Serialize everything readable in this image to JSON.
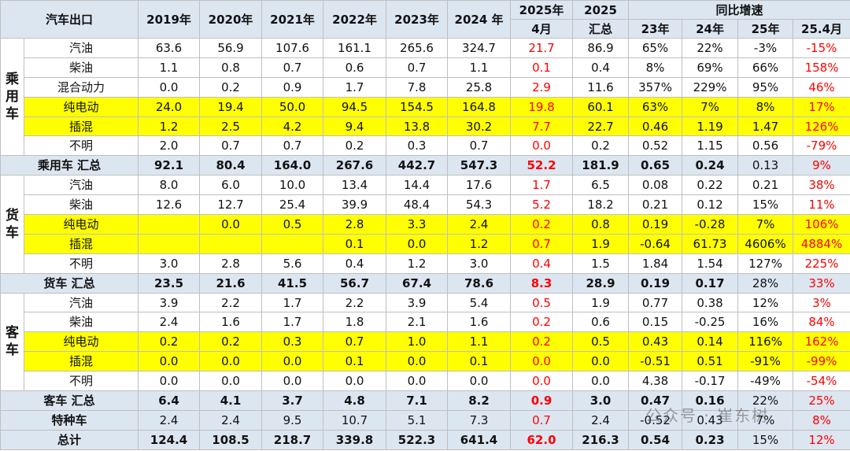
{
  "header": {
    "corner": "汽车出口",
    "years": [
      "2019年",
      "2020年",
      "2021年",
      "2022年",
      "2023年",
      "2024 年"
    ],
    "month_col": [
      "2025年",
      "4月"
    ],
    "total_col": [
      "2025",
      "汇总"
    ],
    "growth": "同比增速",
    "growth_cols": [
      "23年",
      "24年",
      "25年",
      "25.4月"
    ]
  },
  "sections": [
    {
      "label": "乘用车",
      "rows": [
        {
          "name": "汽油",
          "cells": [
            "63.6",
            "56.9",
            "107.6",
            "161.1",
            "265.6",
            "324.7",
            "21.7",
            "86.9",
            "65%",
            "22%",
            "-3%",
            "-15%"
          ]
        },
        {
          "name": "柴油",
          "cells": [
            "1.1",
            "0.8",
            "0.7",
            "0.6",
            "0.7",
            "1.1",
            "0.1",
            "0.4",
            "8%",
            "69%",
            "66%",
            "158%"
          ]
        },
        {
          "name": "混合动力",
          "cells": [
            "0.0",
            "0.2",
            "0.9",
            "1.7",
            "7.8",
            "25.8",
            "2.9",
            "11.6",
            "357%",
            "229%",
            "95%",
            "46%"
          ]
        },
        {
          "name": "纯电动",
          "cells": [
            "24.0",
            "19.4",
            "50.0",
            "94.5",
            "154.5",
            "164.8",
            "19.8",
            "60.1",
            "63%",
            "7%",
            "8%",
            "17%"
          ]
        },
        {
          "name": "插混",
          "cells": [
            "1.2",
            "2.5",
            "4.2",
            "9.4",
            "13.8",
            "30.2",
            "7.7",
            "22.7",
            "0.46",
            "1.19",
            "1.47",
            "126%"
          ]
        },
        {
          "name": "不明",
          "cells": [
            "2.0",
            "0.7",
            "0.7",
            "0.2",
            "0.3",
            "0.7",
            "0.0",
            "0.2",
            "0.52",
            "1.15",
            "0.56",
            "-79%"
          ]
        }
      ],
      "total": {
        "name": "乘用车 汇总",
        "cells": [
          "92.1",
          "80.4",
          "164.0",
          "267.6",
          "442.7",
          "547.3",
          "52.2",
          "181.9",
          "0.65",
          "0.24",
          "0.13",
          "9%"
        ]
      }
    },
    {
      "label": "货车",
      "rows": [
        {
          "name": "汽油",
          "cells": [
            "8.0",
            "6.0",
            "10.0",
            "13.4",
            "14.4",
            "17.6",
            "1.7",
            "6.5",
            "0.08",
            "0.22",
            "0.21",
            "38%"
          ]
        },
        {
          "name": "柴油",
          "cells": [
            "12.6",
            "12.7",
            "25.4",
            "39.9",
            "48.4",
            "54.3",
            "5.2",
            "18.2",
            "0.21",
            "0.12",
            "15%",
            "11%"
          ]
        },
        {
          "name": "纯电动",
          "cells": [
            null,
            "0.0",
            "0.5",
            "2.8",
            "3.3",
            "2.4",
            "0.2",
            "0.8",
            "0.19",
            "-0.28",
            "7%",
            "106%"
          ]
        },
        {
          "name": "插混",
          "cells": [
            null,
            null,
            null,
            "0.1",
            "0.0",
            "1.2",
            "0.7",
            "1.9",
            "-0.64",
            "61.73",
            "4606%",
            "4884%"
          ]
        },
        {
          "name": "不明",
          "cells": [
            "3.0",
            "2.8",
            "5.6",
            "0.4",
            "1.2",
            "3.0",
            "0.4",
            "1.5",
            "1.84",
            "1.54",
            "127%",
            "225%"
          ]
        }
      ],
      "total": {
        "name": "货车 汇总",
        "cells": [
          "23.5",
          "21.6",
          "41.5",
          "56.7",
          "67.4",
          "78.6",
          "8.3",
          "28.9",
          "0.19",
          "0.17",
          "28%",
          "33%"
        ]
      }
    },
    {
      "label": "客车",
      "rows": [
        {
          "name": "汽油",
          "cells": [
            "3.9",
            "2.2",
            "1.7",
            "2.2",
            "3.9",
            "5.4",
            "0.5",
            "1.9",
            "0.77",
            "0.38",
            "12%",
            "3%"
          ]
        },
        {
          "name": "柴油",
          "cells": [
            "2.4",
            "1.6",
            "1.7",
            "1.8",
            "2.1",
            "1.6",
            "0.2",
            "0.6",
            "0.15",
            "-0.25",
            "16%",
            "84%"
          ]
        },
        {
          "name": "纯电动",
          "cells": [
            "0.2",
            "0.2",
            "0.3",
            "0.7",
            "1.0",
            "1.1",
            "0.2",
            "0.5",
            "0.43",
            "0.14",
            "116%",
            "162%"
          ]
        },
        {
          "name": "插混",
          "cells": [
            "0.0",
            "0.0",
            "0.0",
            "0.1",
            "0.0",
            "0.1",
            "0.0",
            "0.0",
            "-0.51",
            "0.51",
            "-91%",
            "-99%"
          ]
        },
        {
          "name": "不明",
          "cells": [
            "0.0",
            "0.0",
            "0.0",
            "0.0",
            "0.0",
            "0.0",
            "0.0",
            "0.0",
            "4.38",
            "-0.17",
            "-49%",
            "-54%"
          ]
        }
      ],
      "total": {
        "name": "客车 汇总",
        "cells": [
          "6.4",
          "4.1",
          "3.7",
          "4.8",
          "7.1",
          "8.2",
          "0.9",
          "3.0",
          "0.47",
          "0.16",
          "22%",
          "25%"
        ]
      }
    }
  ],
  "special": {
    "name": "特种车",
    "cells": [
      "2.4",
      "2.4",
      "9.5",
      "10.7",
      "5.1",
      "7.3",
      "0.7",
      "2.4",
      "-0.52",
      "0.43",
      "7%",
      "8%"
    ]
  },
  "grand_total": {
    "name": "总计",
    "cells": [
      "124.4",
      "108.5",
      "218.7",
      "339.8",
      "522.3",
      "641.4",
      "62.0",
      "216.3",
      "0.54",
      "0.23",
      "15%",
      "12%"
    ]
  },
  "watermark": "公众号 · 崔东树"
}
